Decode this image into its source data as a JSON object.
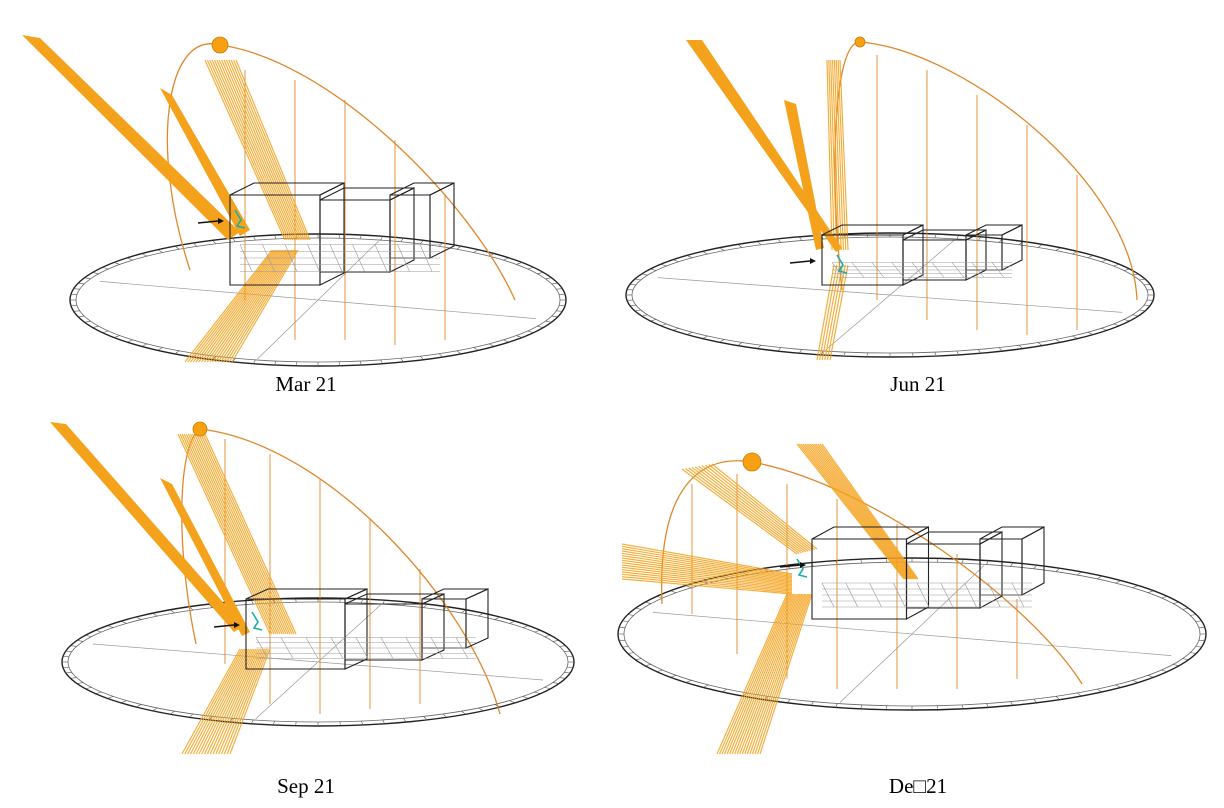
{
  "colors": {
    "sun": "#f7a011",
    "ray": "#f4a21c",
    "path": "#e0882a",
    "frame": "#222222",
    "grid": "#9a9a9a",
    "window": "#1ab0a6"
  },
  "panels": [
    {
      "caption": "Mar 21"
    },
    {
      "caption": "Jun 21"
    },
    {
      "caption": "Sep 21"
    },
    {
      "caption": "De□21"
    }
  ]
}
